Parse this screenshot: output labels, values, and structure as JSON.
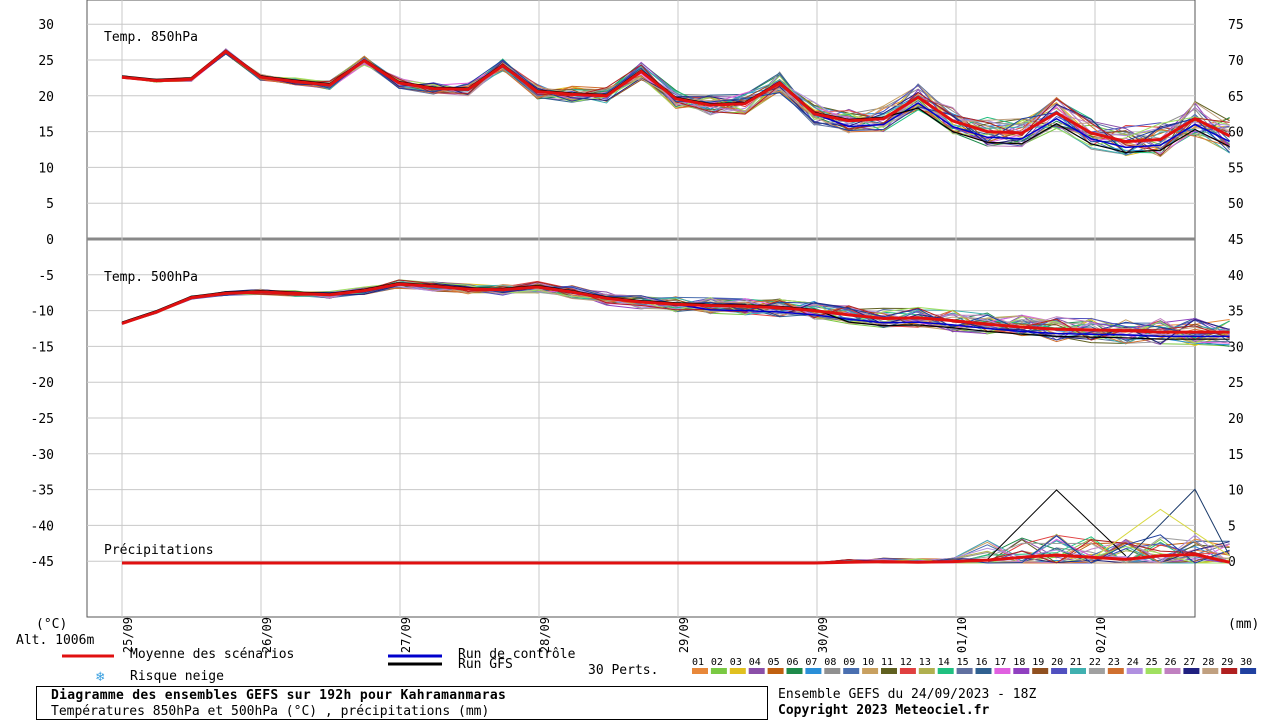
{
  "chart_data": {
    "type": "line",
    "title": "Diagramme des ensembles GEFS sur 192h pour Kahramanmaras",
    "subtitle": "Températures 850hPa et 500hPa (°C) , précipitations (mm)",
    "run_info": "Ensemble GEFS du 24/09/2023 - 18Z",
    "copyright": "Copyright 2023 Meteociel.fr",
    "altitude": "Alt. 1006m",
    "left_axis_unit": "(°C)",
    "right_axis_unit": "(mm)",
    "left_ticks": [
      "30",
      "25",
      "20",
      "15",
      "10",
      "5",
      "0",
      "-5",
      "-10",
      "-15",
      "-20",
      "-25",
      "-30",
      "-35",
      "-40",
      "-45"
    ],
    "right_ticks": [
      "75",
      "70",
      "65",
      "60",
      "55",
      "50",
      "45",
      "40",
      "35",
      "30",
      "25",
      "20",
      "15",
      "10",
      "5",
      "0"
    ],
    "date_labels": [
      "25/09",
      "26/09",
      "27/09",
      "28/09",
      "29/09",
      "30/09",
      "01/10",
      "02/10"
    ],
    "panel_labels": {
      "t850": "Temp. 850hPa",
      "t500": "Temp. 500hPa",
      "precip": "Précipitations"
    },
    "legend": {
      "mean": "Moyenne des scénarios",
      "control": "Run de contrôle",
      "gfs": "Run GFS",
      "snow": "Risque neige",
      "perts": "30 Perts."
    },
    "pert_labels": [
      "01",
      "02",
      "03",
      "04",
      "05",
      "06",
      "07",
      "08",
      "09",
      "10",
      "11",
      "12",
      "13",
      "14",
      "15",
      "16",
      "17",
      "18",
      "19",
      "20",
      "21",
      "22",
      "23",
      "24",
      "25",
      "26",
      "27",
      "28",
      "29",
      "30"
    ],
    "pert_colors": [
      "#e8883a",
      "#7ac943",
      "#e0c020",
      "#8b4fa8",
      "#c06010",
      "#1e8a4a",
      "#2a8fd8",
      "#909090",
      "#4a6fb0",
      "#c8a060",
      "#606020",
      "#e04040",
      "#b0b050",
      "#20c080",
      "#6070a0",
      "#306090",
      "#e060e0",
      "#9040c0",
      "#905020",
      "#5050c0",
      "#40b0b0",
      "#a0a0a0",
      "#d07030",
      "#b090e0",
      "#a0e060",
      "#c080c0",
      "#202080",
      "#c0a080",
      "#b02020",
      "#2040a0"
    ],
    "mean_color": "#e01010",
    "control_color": "#0000cc",
    "gfs_color": "#000000",
    "x_hours": [
      0,
      6,
      12,
      18,
      24,
      30,
      36,
      42,
      48,
      54,
      60,
      66,
      72,
      78,
      84,
      90,
      96,
      102,
      108,
      114,
      120,
      126,
      132,
      138,
      144,
      150,
      156,
      162,
      168,
      174,
      180,
      186,
      192
    ],
    "series": [
      {
        "name": "Temp. 850hPa (moyenne)",
        "values": [
          22.6,
          22.1,
          22.3,
          26.2,
          22.6,
          22.0,
          21.5,
          24.9,
          21.8,
          21.0,
          20.9,
          24.2,
          20.6,
          20.2,
          20.0,
          23.4,
          19.6,
          18.7,
          18.9,
          21.8,
          17.5,
          16.5,
          16.8,
          19.8,
          16.5,
          15.0,
          14.8,
          17.6,
          14.8,
          13.6,
          13.9,
          16.8,
          14.4
        ]
      },
      {
        "name": "Temp. 500hPa (moyenne)",
        "values": [
          -11.8,
          -10.2,
          -8.2,
          -7.6,
          -7.4,
          -7.6,
          -7.8,
          -7.2,
          -6.3,
          -6.6,
          -7.0,
          -7.1,
          -6.7,
          -7.4,
          -8.3,
          -8.8,
          -9.1,
          -9.3,
          -9.4,
          -9.6,
          -10.0,
          -10.6,
          -11.1,
          -11.0,
          -11.4,
          -11.9,
          -12.3,
          -12.6,
          -12.7,
          -12.8,
          -13.0,
          -13.0,
          -13.0
        ]
      },
      {
        "name": "Précipitations (moyenne)",
        "values": [
          0,
          0,
          0,
          0,
          0,
          0,
          0,
          0,
          0,
          0,
          0,
          0,
          0,
          0,
          0,
          0,
          0,
          0,
          0,
          0,
          0,
          0.1,
          0.2,
          0.1,
          0.2,
          0.4,
          0.8,
          1.1,
          0.8,
          0.5,
          1.0,
          1.2,
          0.1
        ]
      }
    ],
    "precip_peaks": [
      {
        "hour": 162,
        "max_mm": 10.2
      },
      {
        "hour": 186,
        "max_mm": 10.3
      },
      {
        "hour": 180,
        "max_mm": 7.5
      }
    ]
  }
}
